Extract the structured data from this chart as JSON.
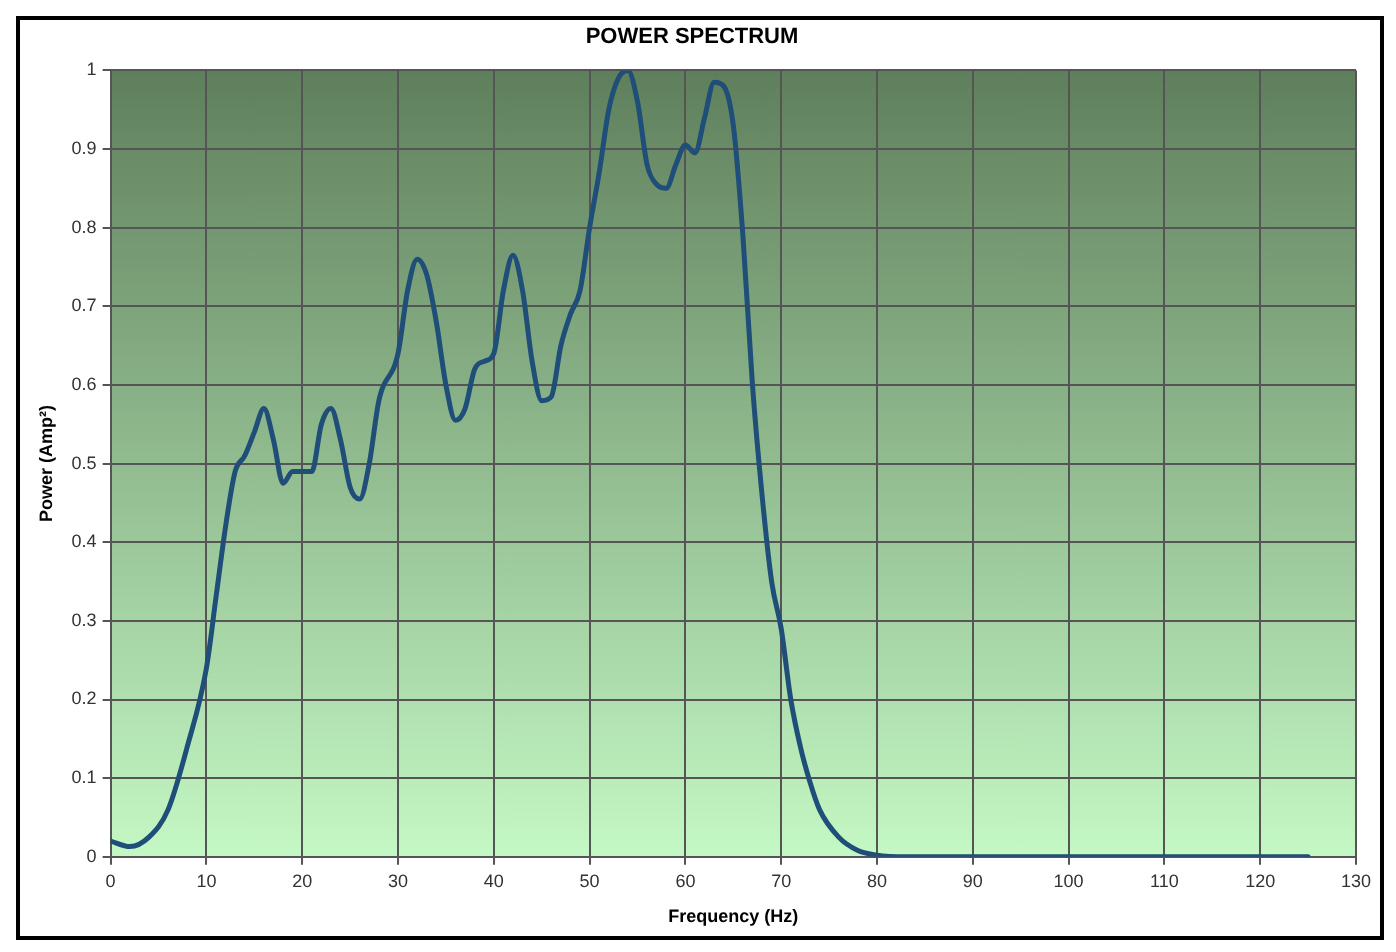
{
  "chart_data": {
    "type": "line",
    "title": "POWER SPECTRUM",
    "xlabel": "Frequency (Hz)",
    "ylabel": "Power (Amp²)",
    "x": [
      0,
      2,
      4,
      6,
      8,
      10,
      11,
      12,
      13,
      14,
      15,
      16,
      17,
      18,
      19,
      20,
      21,
      22,
      23,
      24,
      25,
      26,
      27,
      28,
      30,
      31,
      32,
      33,
      34,
      35,
      36,
      37,
      38,
      39,
      40,
      41,
      42,
      43,
      44,
      45,
      46,
      47,
      48,
      49,
      50,
      51,
      52,
      53,
      54,
      55,
      56,
      57,
      58,
      59,
      60,
      61,
      62,
      63,
      64,
      65,
      66,
      67,
      68,
      69,
      70,
      71,
      72,
      73,
      74,
      76,
      78,
      80,
      83,
      90,
      100,
      110,
      125
    ],
    "series": [
      {
        "color": "#1f4e79",
        "values": [
          0.02,
          0.013,
          0.025,
          0.06,
          0.14,
          0.24,
          0.33,
          0.42,
          0.49,
          0.51,
          0.54,
          0.57,
          0.53,
          0.475,
          0.49,
          0.49,
          0.49,
          0.55,
          0.57,
          0.53,
          0.47,
          0.455,
          0.5,
          0.58,
          0.64,
          0.72,
          0.76,
          0.74,
          0.68,
          0.6,
          0.555,
          0.57,
          0.62,
          0.63,
          0.64,
          0.72,
          0.765,
          0.72,
          0.63,
          0.58,
          0.585,
          0.65,
          0.69,
          0.72,
          0.8,
          0.87,
          0.95,
          0.99,
          1.0,
          0.96,
          0.88,
          0.855,
          0.85,
          0.88,
          0.905,
          0.895,
          0.94,
          0.985,
          0.98,
          0.93,
          0.79,
          0.6,
          0.46,
          0.35,
          0.29,
          0.2,
          0.14,
          0.095,
          0.06,
          0.025,
          0.008,
          0.002,
          0,
          0,
          0,
          0,
          0
        ]
      }
    ],
    "xlim": [
      0,
      130
    ],
    "xticks": [
      0,
      10,
      20,
      30,
      40,
      50,
      60,
      70,
      80,
      90,
      100,
      110,
      120,
      130
    ],
    "ylim": [
      0,
      1
    ],
    "yticks": [
      0,
      0.1,
      0.2,
      0.3,
      0.4,
      0.5,
      0.6,
      0.7,
      0.8,
      0.9,
      1
    ],
    "grid": true,
    "legend": false,
    "marker": "none",
    "line_style": "solid"
  }
}
